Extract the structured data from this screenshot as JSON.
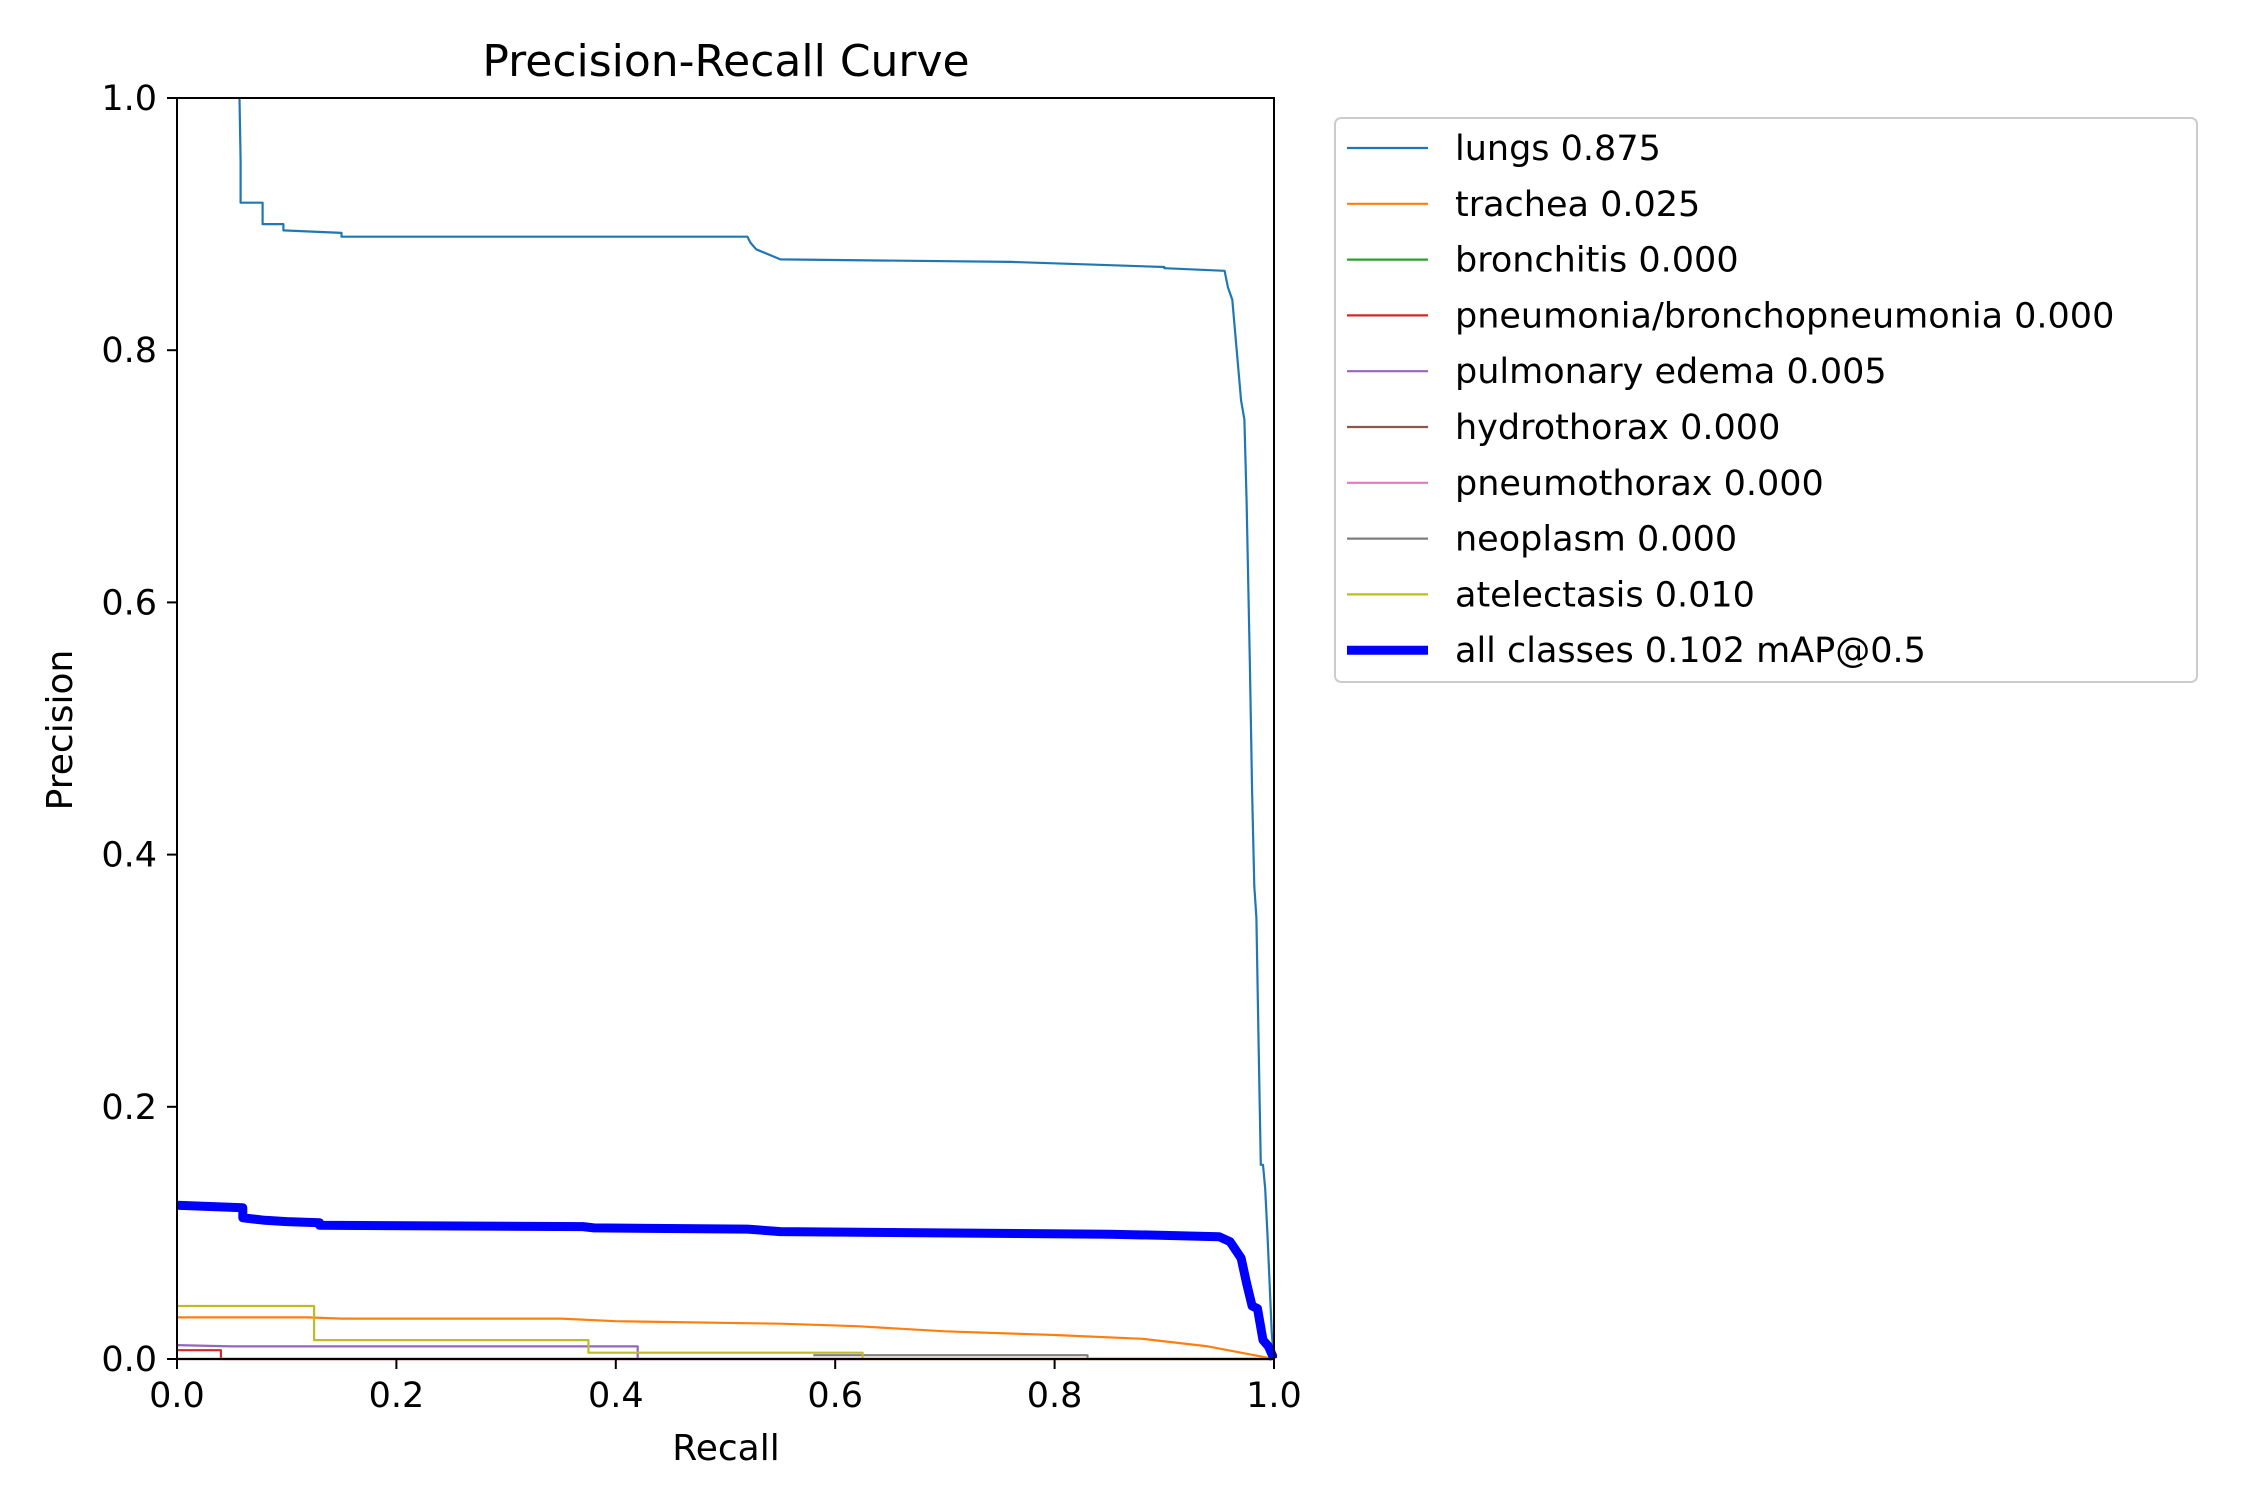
{
  "chart_data": {
    "type": "line",
    "title": "Precision-Recall Curve",
    "xlabel": "Recall",
    "ylabel": "Precision",
    "xlim": [
      0,
      1
    ],
    "ylim": [
      0,
      1
    ],
    "xticks": [
      "0.0",
      "0.2",
      "0.4",
      "0.6",
      "0.8",
      "1.0"
    ],
    "yticks": [
      "0.0",
      "0.2",
      "0.4",
      "0.6",
      "0.8",
      "1.0"
    ],
    "grid": false,
    "legend_position": "outside upper right",
    "series": [
      {
        "name": "lungs 0.875",
        "color": "#1f77b4",
        "x": [
          0.057,
          0.058,
          0.058,
          0.078,
          0.078,
          0.097,
          0.097,
          0.15,
          0.15,
          0.52,
          0.523,
          0.528,
          0.55,
          0.55,
          0.76,
          0.76,
          0.9,
          0.9,
          0.955,
          0.958,
          0.962,
          0.964,
          0.966,
          0.97,
          0.973,
          0.975,
          0.978,
          0.98,
          0.982,
          0.984,
          0.986,
          0.988,
          0.99,
          0.992,
          0.994,
          0.996,
          0.998,
          1.0
        ],
        "y": [
          1.0,
          0.95,
          0.917,
          0.917,
          0.9,
          0.9,
          0.895,
          0.893,
          0.89,
          0.89,
          0.885,
          0.88,
          0.872,
          0.872,
          0.87,
          0.87,
          0.866,
          0.865,
          0.863,
          0.85,
          0.84,
          0.82,
          0.8,
          0.76,
          0.745,
          0.68,
          0.55,
          0.45,
          0.375,
          0.35,
          0.25,
          0.154,
          0.154,
          0.135,
          0.1,
          0.06,
          0.02,
          0.0
        ]
      },
      {
        "name": "trachea 0.025",
        "color": "#ff7f0e",
        "x": [
          0.0,
          0.12,
          0.15,
          0.35,
          0.4,
          0.55,
          0.62,
          0.7,
          0.8,
          0.88,
          0.94,
          0.97,
          1.0
        ],
        "y": [
          0.033,
          0.033,
          0.032,
          0.032,
          0.03,
          0.028,
          0.026,
          0.022,
          0.019,
          0.016,
          0.01,
          0.005,
          0.0
        ]
      },
      {
        "name": "bronchitis 0.000",
        "color": "#2ca02c",
        "x": [
          0.0,
          1.0
        ],
        "y": [
          0.0,
          0.0
        ]
      },
      {
        "name": "pneumonia/bronchopneumonia 0.000",
        "color": "#d62728",
        "x": [
          0.0,
          0.04,
          0.04,
          1.0
        ],
        "y": [
          0.007,
          0.007,
          0.0,
          0.0
        ]
      },
      {
        "name": "pulmonary edema 0.005",
        "color": "#9467bd",
        "x": [
          0.0,
          0.05,
          0.42,
          0.42,
          1.0
        ],
        "y": [
          0.011,
          0.01,
          0.01,
          0.0,
          0.0
        ]
      },
      {
        "name": "hydrothorax 0.000",
        "color": "#8c564b",
        "x": [
          0.0,
          1.0
        ],
        "y": [
          0.0,
          0.0
        ]
      },
      {
        "name": "pneumothorax 0.000",
        "color": "#e377c2",
        "x": [
          0.0,
          1.0
        ],
        "y": [
          0.0,
          0.0
        ]
      },
      {
        "name": "neoplasm 0.000",
        "color": "#7f7f7f",
        "x": [
          0.58,
          0.83,
          0.83,
          1.0
        ],
        "y": [
          0.003,
          0.003,
          0.0,
          0.0
        ]
      },
      {
        "name": "atelectasis 0.010",
        "color": "#bcbd22",
        "x": [
          0.0,
          0.125,
          0.125,
          0.375,
          0.375,
          0.625,
          0.625,
          1.0
        ],
        "y": [
          0.042,
          0.042,
          0.015,
          0.015,
          0.005,
          0.005,
          0.0,
          0.0
        ]
      },
      {
        "name": "all classes 0.102 mAP@0.5",
        "color": "#0000ff",
        "thick": true,
        "x": [
          0.0,
          0.06,
          0.06,
          0.08,
          0.1,
          0.13,
          0.13,
          0.37,
          0.38,
          0.52,
          0.55,
          0.85,
          0.9,
          0.95,
          0.96,
          0.97,
          0.975,
          0.98,
          0.985,
          0.99,
          0.995,
          1.0
        ],
        "y": [
          0.122,
          0.12,
          0.112,
          0.11,
          0.109,
          0.108,
          0.106,
          0.105,
          0.104,
          0.103,
          0.101,
          0.099,
          0.098,
          0.097,
          0.093,
          0.08,
          0.06,
          0.042,
          0.04,
          0.015,
          0.01,
          0.0
        ]
      }
    ]
  }
}
